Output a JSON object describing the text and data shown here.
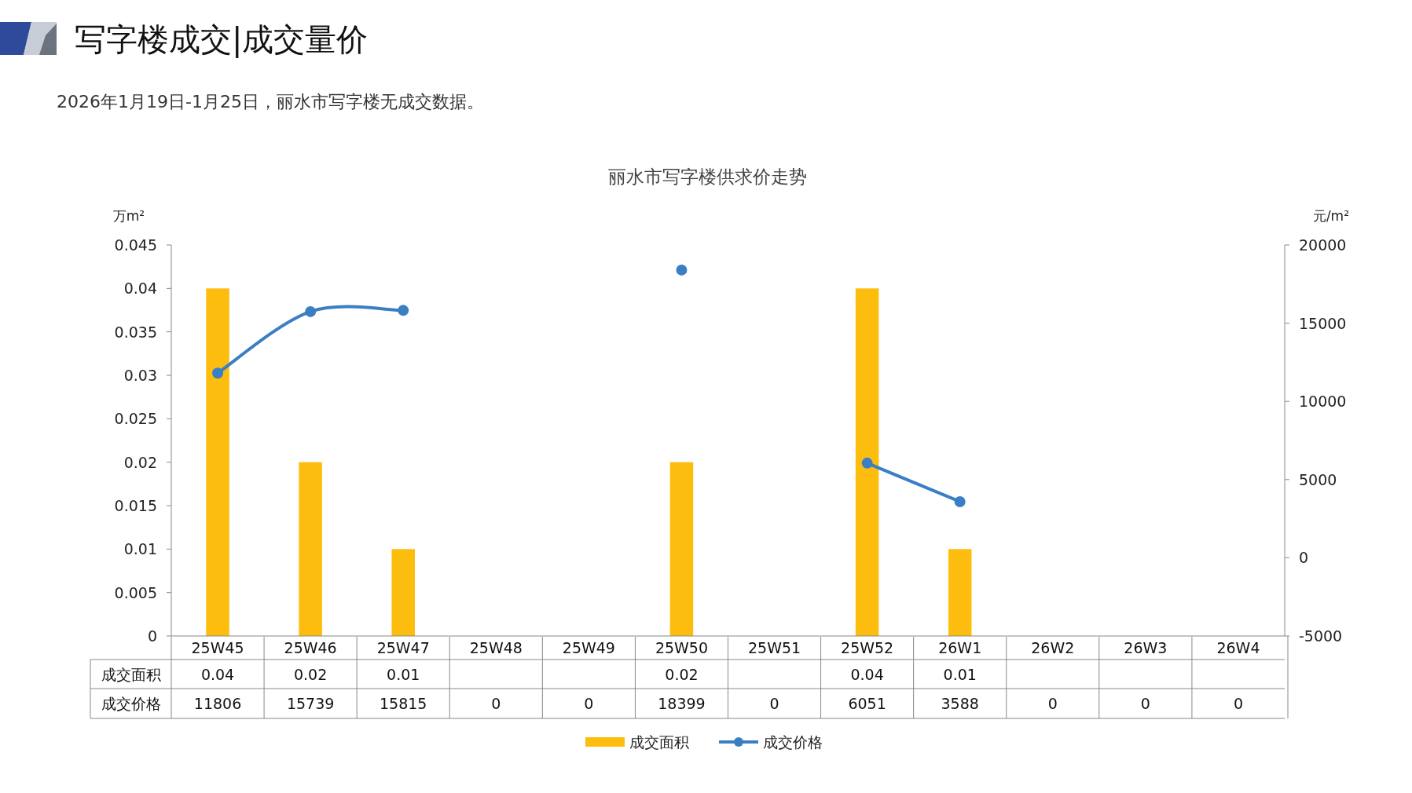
{
  "chart_data": {
    "type": "bar",
    "title": "丽水市写字楼供求价走势",
    "annotations": [
      "写字楼成交|成交量价",
      "2026年1月19日-1月25日，丽水市写字楼无成交数据。"
    ],
    "ylabel": "万m²",
    "y2label": "元/m²",
    "categories": [
      "25W45",
      "25W46",
      "25W47",
      "25W48",
      "25W49",
      "25W50",
      "25W51",
      "25W52",
      "26W1",
      "26W2",
      "26W3",
      "26W4"
    ],
    "series": [
      {
        "name": "成交面积",
        "color": "#fcbd0f",
        "values": [
          0.04,
          0.02,
          0.01,
          null,
          null,
          0.02,
          null,
          0.04,
          0.01,
          null,
          null,
          null
        ],
        "value_labels": [
          "0.04",
          "0.02",
          "0.01",
          null,
          null,
          "0.02",
          null,
          "0.04",
          "0.01",
          null,
          null,
          null
        ]
      },
      {
        "name": "成交价格",
        "type": "line",
        "axis": "y2",
        "color": "#3a7fc4",
        "values": [
          11806,
          15739,
          15815,
          null,
          null,
          18399,
          null,
          6051,
          3588,
          null,
          null,
          null
        ],
        "value_labels": [
          "11806",
          "15739",
          "15815",
          "0",
          "0",
          "18399",
          "0",
          "6051",
          "3588",
          "0",
          "0",
          "0"
        ]
      }
    ],
    "ylim": [
      0,
      0.045
    ],
    "yticks": [
      0,
      0.005,
      0.01,
      0.015,
      0.02,
      0.025,
      0.03,
      0.035,
      0.04,
      0.045
    ],
    "y2lim": [
      -5000,
      20000
    ],
    "y2ticks": [
      -5000,
      0,
      5000,
      10000,
      15000,
      20000
    ],
    "marker": "circle",
    "line_style": "solid",
    "legend": "bottom",
    "grid": false
  }
}
